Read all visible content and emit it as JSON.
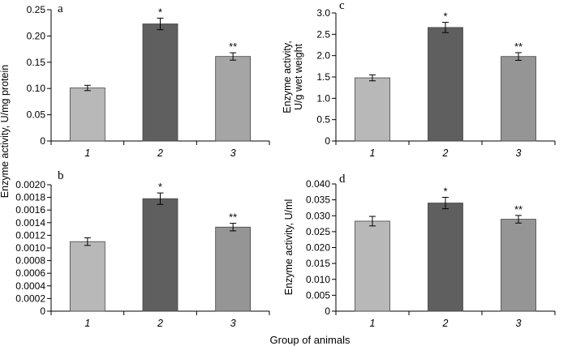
{
  "figure": {
    "shared_xlabel": "Group of animals",
    "shared_ylabel": "Enzyme activity, U/mg protein"
  },
  "chart_data": [
    {
      "type": "bar",
      "panel": "a",
      "categories": [
        "1",
        "2",
        "3"
      ],
      "values": [
        0.101,
        0.223,
        0.161
      ],
      "errors": [
        0.005,
        0.011,
        0.007
      ],
      "annotations": [
        "",
        "*",
        "**"
      ],
      "colors": [
        "#b8b8b8",
        "#5f5f5f",
        "#a5a5a5"
      ],
      "ylabel": "",
      "ylim": [
        0,
        0.25
      ],
      "yticks": [
        0,
        0.05,
        0.1,
        0.15,
        0.2,
        0.25
      ],
      "ytick_labels": [
        "0",
        "0.05",
        "0.10",
        "0.15",
        "0.20",
        "0.25"
      ],
      "grid": false
    },
    {
      "type": "bar",
      "panel": "c",
      "categories": [
        "1",
        "2",
        "3"
      ],
      "values": [
        1.48,
        2.66,
        1.98
      ],
      "errors": [
        0.07,
        0.12,
        0.09
      ],
      "annotations": [
        "",
        "*",
        "**"
      ],
      "colors": [
        "#b8b8b8",
        "#5f5f5f",
        "#959595"
      ],
      "ylabel": "Enzyme activity, U/g wet weight",
      "ylim": [
        0,
        3.0
      ],
      "yticks": [
        0,
        0.5,
        1.0,
        1.5,
        2.0,
        2.5,
        3.0
      ],
      "ytick_labels": [
        "0",
        "0.5",
        "1.0",
        "1.5",
        "2.0",
        "2.5",
        "3.0"
      ],
      "grid": false
    },
    {
      "type": "bar",
      "panel": "b",
      "categories": [
        "1",
        "2",
        "3"
      ],
      "values": [
        0.0011,
        0.00178,
        0.00133
      ],
      "errors": [
        6e-05,
        9e-05,
        6e-05
      ],
      "annotations": [
        "",
        "*",
        "**"
      ],
      "colors": [
        "#b8b8b8",
        "#5f5f5f",
        "#959595"
      ],
      "ylabel": "",
      "ylim": [
        0,
        0.002
      ],
      "yticks": [
        0,
        0.0002,
        0.0004,
        0.0006,
        0.0008,
        0.001,
        0.0012,
        0.0014,
        0.0016,
        0.0018,
        0.002
      ],
      "ytick_labels": [
        "0",
        "0.0002",
        "0.0004",
        "0.0006",
        "0.0008",
        "0.0010",
        "0.0012",
        "0.0014",
        "0.0016",
        "0.0018",
        "0.0020"
      ],
      "grid": false
    },
    {
      "type": "bar",
      "panel": "d",
      "categories": [
        "1",
        "2",
        "3"
      ],
      "values": [
        0.0283,
        0.034,
        0.0289
      ],
      "errors": [
        0.0015,
        0.0018,
        0.0012
      ],
      "annotations": [
        "",
        "*",
        "**"
      ],
      "colors": [
        "#b8b8b8",
        "#5f5f5f",
        "#959595"
      ],
      "ylabel": "Enzyme activity, U/ml",
      "ylim": [
        0,
        0.04
      ],
      "yticks": [
        0,
        0.005,
        0.01,
        0.015,
        0.02,
        0.025,
        0.03,
        0.035,
        0.04
      ],
      "ytick_labels": [
        "0",
        "0.005",
        "0.010",
        "0.015",
        "0.020",
        "0.025",
        "0.030",
        "0.035",
        "0.040"
      ],
      "grid": false
    }
  ]
}
